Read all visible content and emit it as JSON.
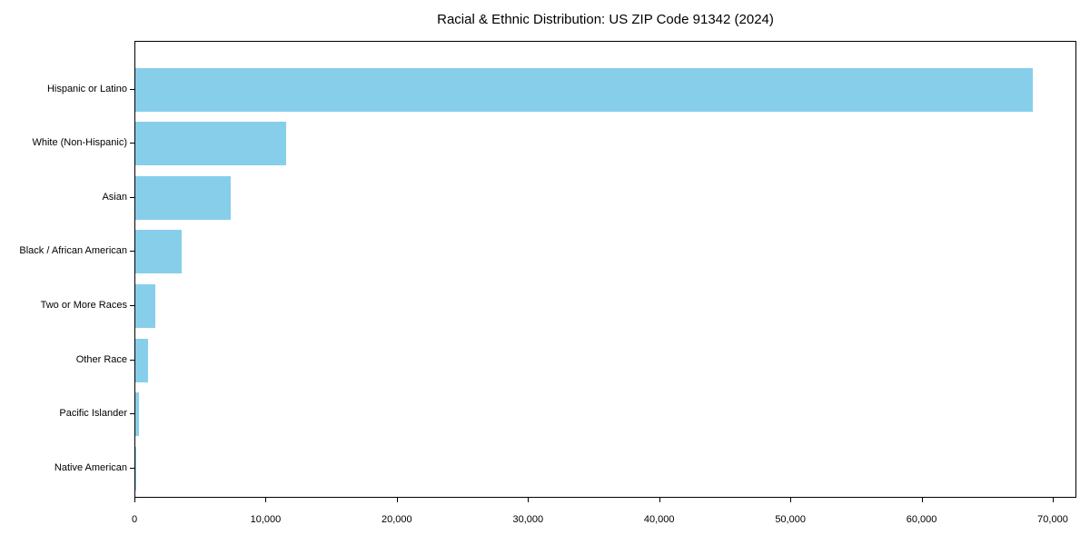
{
  "chart_data": {
    "type": "bar",
    "orientation": "horizontal",
    "title": "Racial & Ethnic Distribution: US ZIP Code 91342 (2024)",
    "categories": [
      "Hispanic or Latino",
      "White (Non-Hispanic)",
      "Asian",
      "Black / African American",
      "Two or More Races",
      "Other Race",
      "Pacific Islander",
      "Native American"
    ],
    "values": [
      68400,
      11500,
      7300,
      3500,
      1500,
      1000,
      280,
      70
    ],
    "xlabel": "",
    "ylabel": "",
    "xlim": [
      0,
      71800
    ],
    "xticks": [
      0,
      10000,
      20000,
      30000,
      40000,
      50000,
      60000,
      70000
    ],
    "xtick_labels": [
      "0",
      "10,000",
      "20,000",
      "30,000",
      "40,000",
      "50,000",
      "60,000",
      "70,000"
    ],
    "bar_color": "#87CEEB",
    "axis_color": "#000000",
    "text_color": "#000000",
    "background_color": "#FFFFFF",
    "grid": false,
    "legend": null
  }
}
